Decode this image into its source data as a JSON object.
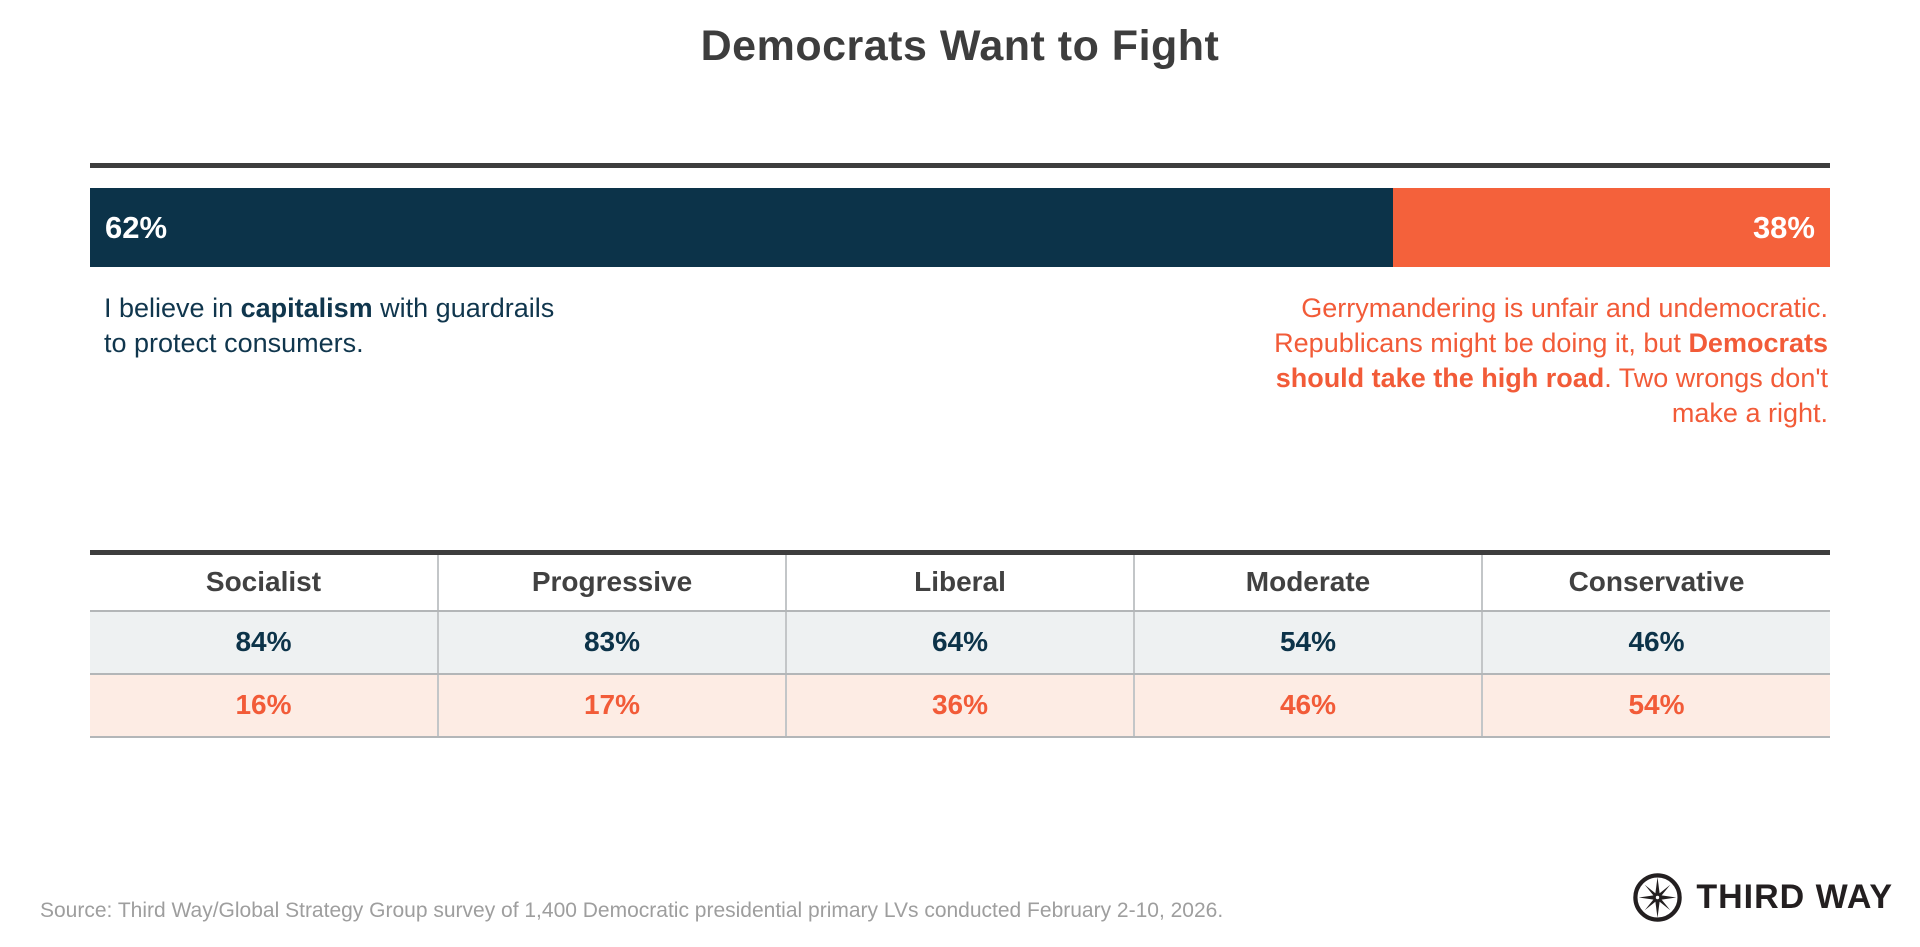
{
  "page": {
    "title": "Democrats Want to Fight"
  },
  "colors": {
    "navy": "#0c3349",
    "orange": "#f4613b",
    "title_gray": "#3d3d3d",
    "statement_navy": "#10364d",
    "statement_orange": "#f25b38",
    "row_navy_bg": "#eef1f2",
    "row_orange_bg": "#fdece4",
    "grid_gray": "#c3c6c8",
    "source_gray": "#9e9e9e",
    "logo_black": "#231f20"
  },
  "chart_data": {
    "type": "bar",
    "title": "Democrats Want to Fight",
    "bar": {
      "segments": [
        {
          "name": "capitalism",
          "label": "62%",
          "value": 62,
          "width_percent": 74.9,
          "color": "#0c3349",
          "label_align": "left"
        },
        {
          "name": "high-road",
          "label": "38%",
          "value": 38,
          "width_percent": 25.1,
          "color": "#f4613b",
          "label_align": "right"
        }
      ]
    },
    "table": {
      "format": "percent",
      "categories": [
        "Socialist",
        "Progressive",
        "Liberal",
        "Moderate",
        "Conservative"
      ],
      "series": [
        {
          "name": "capitalism-statement-share",
          "text_color": "#0c3349",
          "row_bg": "#eef1f2",
          "values": [
            84,
            83,
            64,
            54,
            46
          ]
        },
        {
          "name": "high-road-statement-share",
          "text_color": "#f25b38",
          "row_bg": "#fdece4",
          "values": [
            16,
            17,
            36,
            46,
            54
          ]
        }
      ]
    }
  },
  "statements": {
    "left": {
      "runs": [
        {
          "text": "I believe in "
        },
        {
          "text": "capitalism",
          "bold": true
        },
        {
          "text": " with guardrails",
          "br_after": true
        },
        {
          "text": "to protect consumers."
        }
      ]
    },
    "right": {
      "runs": [
        {
          "text": "Gerrymandering is unfair and undemocratic.",
          "br_after": true
        },
        {
          "text": "Republicans might be doing it, but "
        },
        {
          "text": "Democrats",
          "bold": true,
          "br_after": true
        },
        {
          "text": "should take the high road",
          "bold": true
        },
        {
          "text": ". Two wrongs don't",
          "br_after": true
        },
        {
          "text": "make a right."
        }
      ]
    }
  },
  "footer": {
    "source": "Source: Third Way/Global Strategy Group survey of 1,400 Democratic presidential primary LVs conducted February 2-10, 2026.",
    "logo_text": "THIRD WAY"
  }
}
